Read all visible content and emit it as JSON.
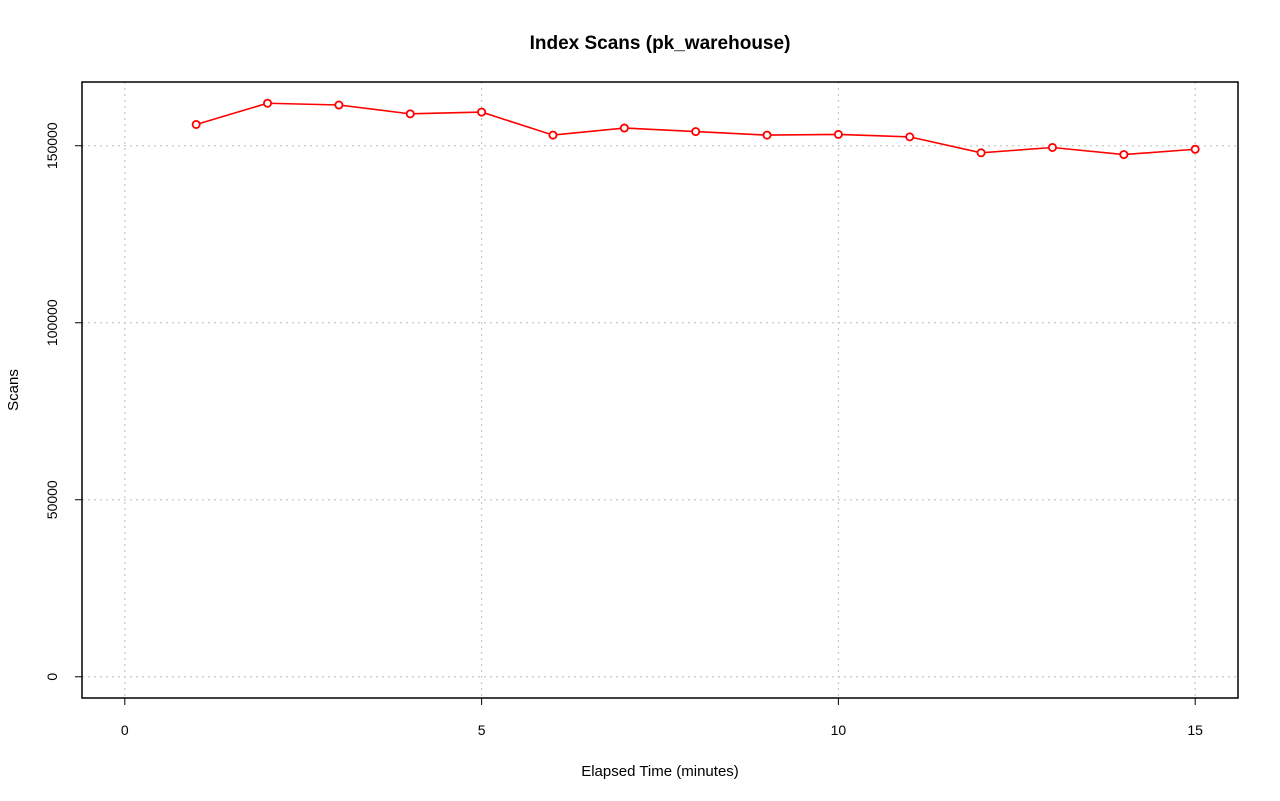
{
  "chart_data": {
    "type": "line",
    "title": "Index Scans (pk_warehouse)",
    "xlabel": "Elapsed Time (minutes)",
    "ylabel": "Scans",
    "xlim": [
      -0.6,
      15.6
    ],
    "ylim": [
      -6000,
      168000
    ],
    "x_ticks": [
      0,
      5,
      10,
      15
    ],
    "y_ticks": [
      0,
      50000,
      100000,
      150000
    ],
    "grid": true,
    "legend": "none",
    "series": [
      {
        "color": "#ff0000",
        "x": [
          1,
          2,
          3,
          4,
          5,
          6,
          7,
          8,
          9,
          10,
          11,
          12,
          13,
          14,
          15
        ],
        "y": [
          156000,
          162000,
          161500,
          159000,
          159500,
          153000,
          155000,
          154000,
          153000,
          153200,
          152500,
          148000,
          149500,
          147500,
          149000
        ]
      }
    ]
  }
}
